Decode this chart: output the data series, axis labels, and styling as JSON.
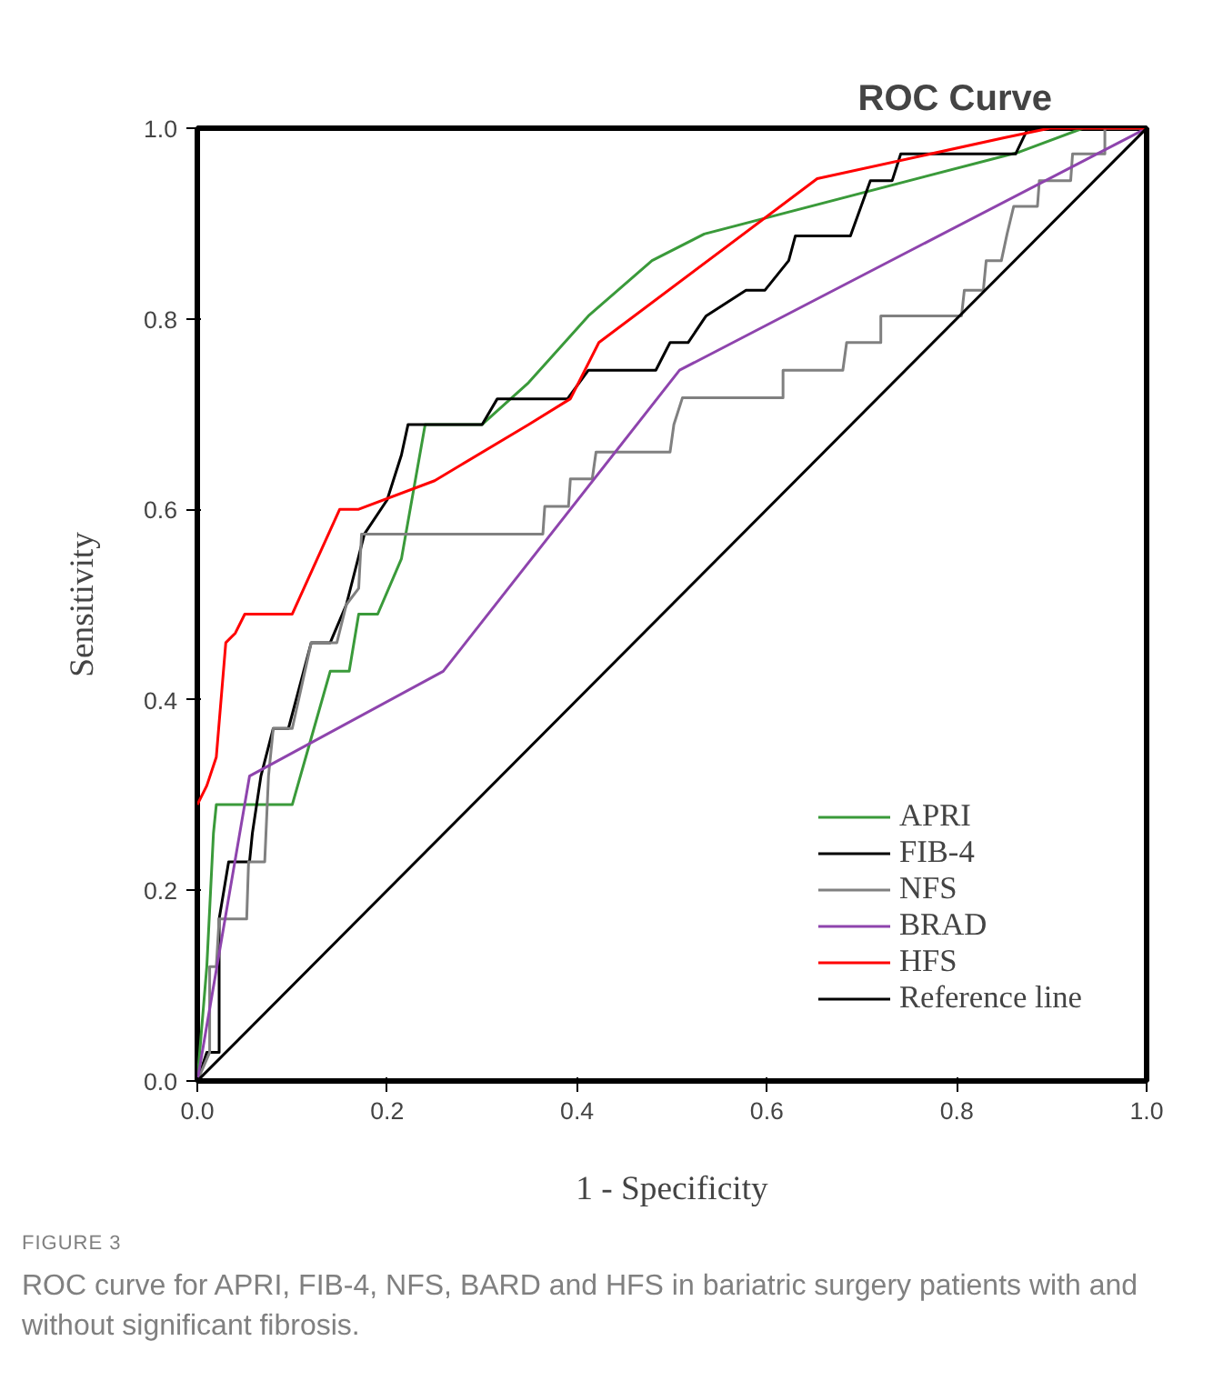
{
  "chart_data": {
    "type": "line",
    "title": "ROC Curve",
    "xlabel": "1 - Specificity",
    "ylabel": "Sensitivity",
    "xlim": [
      0,
      1
    ],
    "ylim": [
      0,
      1
    ],
    "xticks": [
      {
        "value": 0,
        "label": "0.0"
      },
      0.2,
      0.4,
      0.6,
      0.8,
      {
        "value": 1,
        "label": "1.0"
      }
    ],
    "yticks": [
      {
        "value": 0,
        "label": "0.0"
      },
      0.2,
      0.4,
      0.6,
      0.8,
      {
        "value": 1,
        "label": "1.0"
      }
    ],
    "grid": false,
    "legend": "bottom right",
    "marker": "none",
    "line_style": "solid",
    "series": [
      {
        "name": "APRI",
        "color": "#3a9a3a",
        "x": [
          0,
          0.01,
          0.017,
          0.02,
          0.1,
          0.12,
          0.14,
          0.16,
          0.17,
          0.19,
          0.215,
          0.24,
          0.3,
          0.349,
          0.412,
          0.479,
          0.534,
          0.866,
          0.933,
          1.0
        ],
        "values": [
          0,
          0.12,
          0.26,
          0.29,
          0.29,
          0.36,
          0.43,
          0.43,
          0.49,
          0.49,
          0.548,
          0.689,
          0.689,
          0.733,
          0.803,
          0.861,
          0.889,
          0.975,
          1.0,
          1.0
        ]
      },
      {
        "name": "FIB-4",
        "color": "#000000",
        "x": [
          0,
          0.01,
          0.023,
          0.023,
          0.033,
          0.055,
          0.058,
          0.067,
          0.08,
          0.096,
          0.12,
          0.14,
          0.157,
          0.176,
          0.2,
          0.215,
          0.222,
          0.3,
          0.316,
          0.39,
          0.412,
          0.483,
          0.498,
          0.517,
          0.536,
          0.578,
          0.598,
          0.623,
          0.63,
          0.688,
          0.709,
          0.732,
          0.741,
          0.862,
          0.875,
          1.0
        ],
        "values": [
          0,
          0.03,
          0.03,
          0.17,
          0.23,
          0.23,
          0.26,
          0.32,
          0.37,
          0.37,
          0.46,
          0.46,
          0.5,
          0.574,
          0.61,
          0.657,
          0.689,
          0.689,
          0.716,
          0.716,
          0.746,
          0.746,
          0.775,
          0.775,
          0.803,
          0.83,
          0.83,
          0.861,
          0.887,
          0.887,
          0.945,
          0.945,
          0.973,
          0.973,
          1.0,
          1.0
        ]
      },
      {
        "name": "NFS",
        "color": "#808080",
        "x": [
          0,
          0.013,
          0.013,
          0.02,
          0.023,
          0.052,
          0.054,
          0.071,
          0.075,
          0.08,
          0.1,
          0.12,
          0.147,
          0.157,
          0.17,
          0.173,
          0.364,
          0.366,
          0.391,
          0.393,
          0.416,
          0.42,
          0.498,
          0.502,
          0.511,
          0.617,
          0.617,
          0.68,
          0.684,
          0.72,
          0.72,
          0.805,
          0.808,
          0.828,
          0.831,
          0.847,
          0.853,
          0.86,
          0.885,
          0.887,
          0.92,
          0.922,
          0.956,
          0.956,
          1.0
        ],
        "values": [
          0,
          0.03,
          0.12,
          0.12,
          0.17,
          0.17,
          0.23,
          0.23,
          0.32,
          0.37,
          0.37,
          0.46,
          0.46,
          0.5,
          0.517,
          0.574,
          0.574,
          0.603,
          0.603,
          0.632,
          0.632,
          0.66,
          0.66,
          0.689,
          0.717,
          0.717,
          0.746,
          0.746,
          0.775,
          0.775,
          0.803,
          0.803,
          0.83,
          0.83,
          0.861,
          0.861,
          0.889,
          0.918,
          0.918,
          0.945,
          0.945,
          0.973,
          0.973,
          1.0,
          1.0
        ]
      },
      {
        "name": "BRAD",
        "color": "#8e44ad",
        "x": [
          0,
          0.055,
          0.259,
          0.508,
          1.0
        ],
        "values": [
          0,
          0.32,
          0.43,
          0.746,
          1.0
        ]
      },
      {
        "name": "HFS",
        "color": "#ff0000",
        "x": [
          0,
          0.01,
          0.02,
          0.03,
          0.04,
          0.05,
          0.1,
          0.15,
          0.17,
          0.25,
          0.349,
          0.393,
          0.423,
          0.653,
          0.85,
          0.898,
          1.0
        ],
        "values": [
          0.29,
          0.31,
          0.34,
          0.46,
          0.47,
          0.49,
          0.49,
          0.6,
          0.6,
          0.63,
          0.689,
          0.716,
          0.775,
          0.947,
          0.99,
          1.0,
          1.0
        ]
      },
      {
        "name": "Reference line",
        "color": "#000000",
        "x": [
          0,
          1
        ],
        "values": [
          0,
          1
        ]
      }
    ],
    "annotations": [
      "FIGURE 3",
      "ROC curve for APRI, FIB-4, NFS, BARD and HFS in bariatric surgery patients with and without significant fibrosis."
    ]
  }
}
